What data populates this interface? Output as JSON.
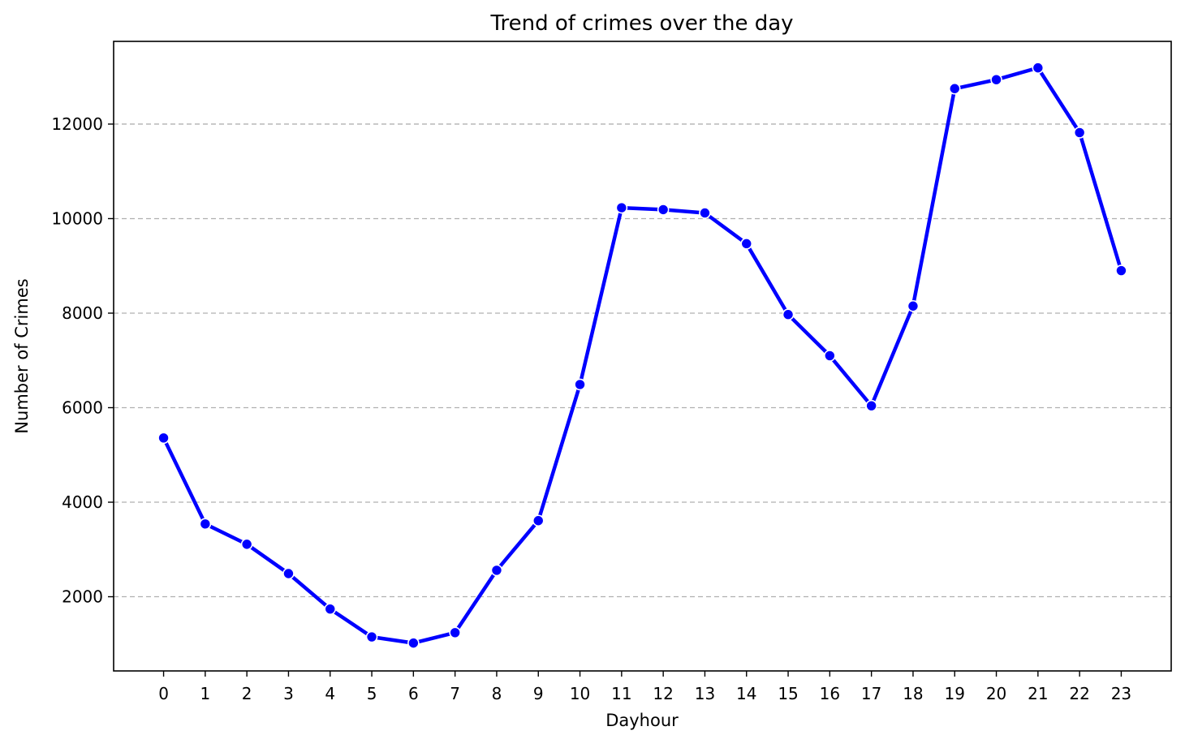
{
  "chart_data": {
    "type": "line",
    "title": "Trend of crimes over the day",
    "xlabel": "Dayhour",
    "ylabel": "Number of Crimes",
    "x": [
      0,
      1,
      2,
      3,
      4,
      5,
      6,
      7,
      8,
      9,
      10,
      11,
      12,
      13,
      14,
      15,
      16,
      17,
      18,
      19,
      20,
      21,
      22,
      23
    ],
    "x_tick_labels": [
      "0",
      "1",
      "2",
      "3",
      "4",
      "5",
      "6",
      "7",
      "8",
      "9",
      "10",
      "11",
      "12",
      "13",
      "14",
      "15",
      "16",
      "17",
      "18",
      "19",
      "20",
      "21",
      "22",
      "23"
    ],
    "series": [
      {
        "values": [
          5360,
          3540,
          3110,
          2490,
          1740,
          1150,
          1020,
          1240,
          2560,
          3610,
          6490,
          10230,
          10190,
          10120,
          9470,
          7970,
          7100,
          6040,
          8150,
          12750,
          12940,
          13190,
          11820,
          8900
        ],
        "color": "#0000ff",
        "marker": "circle"
      }
    ],
    "xlim": [
      -1.2,
      24.2
    ],
    "ylim": [
      430,
      13750
    ],
    "y_ticks": [
      2000,
      4000,
      6000,
      8000,
      10000,
      12000
    ],
    "y_tick_labels": [
      "2000",
      "4000",
      "6000",
      "8000",
      "10000",
      "12000"
    ],
    "grid": "horizontal dashed",
    "legend": "none"
  }
}
